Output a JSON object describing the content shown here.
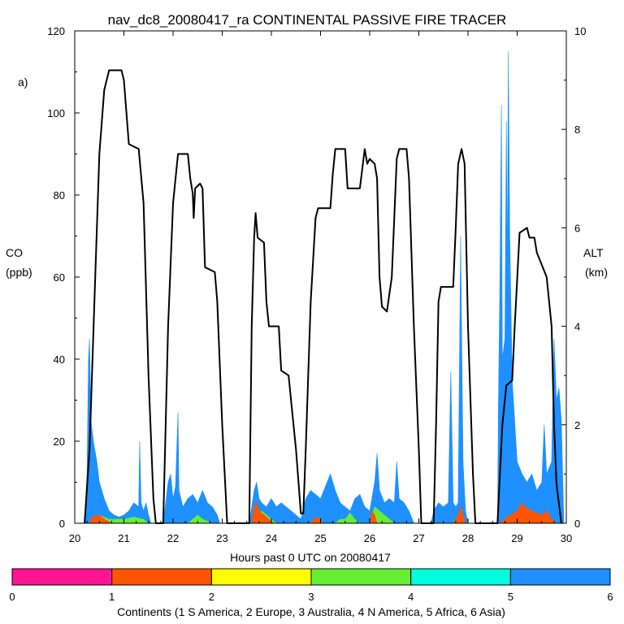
{
  "chart_data": {
    "type": "area",
    "title": "nav_dc8_20080417_ra CONTINENTAL PASSIVE FIRE TRACER",
    "panel_label": "a)",
    "xlabel": "Hours past 0 UTC on 20080417",
    "ylabel_left": [
      "CO",
      "(ppb)"
    ],
    "ylabel_right": [
      "ALT",
      "(km)"
    ],
    "xlim": [
      20,
      30
    ],
    "ylim_left": [
      0,
      120
    ],
    "ylim_right": [
      0,
      10
    ],
    "x_ticks": [
      "20",
      "21",
      "22",
      "23",
      "24",
      "25",
      "26",
      "27",
      "28",
      "29",
      "30"
    ],
    "y_left_ticks": [
      "0",
      "20",
      "40",
      "60",
      "80",
      "100",
      "120"
    ],
    "y_right_ticks": [
      "0",
      "2",
      "4",
      "6",
      "8",
      "10"
    ],
    "colorbar": {
      "ticks": [
        "0",
        "1",
        "2",
        "3",
        "4",
        "5",
        "6"
      ],
      "colors": [
        "#ff1493",
        "#ff5500",
        "#ffff00",
        "#66ee33",
        "#00ffdd",
        "#1e90ff"
      ],
      "label": "Continents (1 S America, 2 Europe, 3 Australia, 4 N America, 5 Africa, 6 Asia)"
    },
    "co_series": [
      {
        "name": "Asia",
        "color": "#1e90ff",
        "points": [
          [
            20.2,
            0
          ],
          [
            20.25,
            12
          ],
          [
            20.28,
            40
          ],
          [
            20.3,
            45
          ],
          [
            20.33,
            25
          ],
          [
            20.38,
            20
          ],
          [
            20.45,
            15
          ],
          [
            20.5,
            10
          ],
          [
            20.6,
            6
          ],
          [
            20.7,
            3
          ],
          [
            20.8,
            2
          ],
          [
            20.9,
            1.5
          ],
          [
            21.0,
            2
          ],
          [
            21.1,
            3
          ],
          [
            21.2,
            5
          ],
          [
            21.3,
            4
          ],
          [
            21.32,
            20
          ],
          [
            21.35,
            5
          ],
          [
            21.4,
            3
          ],
          [
            21.45,
            5
          ],
          [
            21.5,
            2
          ],
          [
            21.55,
            0
          ],
          [
            21.8,
            0
          ],
          [
            21.85,
            5
          ],
          [
            21.9,
            10
          ],
          [
            21.95,
            12
          ],
          [
            22.0,
            6
          ],
          [
            22.05,
            9
          ],
          [
            22.1,
            27
          ],
          [
            22.12,
            8
          ],
          [
            22.2,
            4
          ],
          [
            22.3,
            6
          ],
          [
            22.4,
            7
          ],
          [
            22.5,
            5
          ],
          [
            22.6,
            8
          ],
          [
            22.7,
            5
          ],
          [
            22.8,
            4
          ],
          [
            22.9,
            2
          ],
          [
            22.95,
            0
          ],
          [
            23.55,
            0
          ],
          [
            23.6,
            4
          ],
          [
            23.65,
            8
          ],
          [
            23.7,
            10
          ],
          [
            23.75,
            6
          ],
          [
            23.8,
            5
          ],
          [
            23.9,
            4
          ],
          [
            24.0,
            6
          ],
          [
            24.1,
            4
          ],
          [
            24.2,
            5
          ],
          [
            24.3,
            4
          ],
          [
            24.4,
            3
          ],
          [
            24.5,
            2
          ],
          [
            24.6,
            1
          ],
          [
            24.7,
            6
          ],
          [
            24.8,
            8
          ],
          [
            24.9,
            7
          ],
          [
            25.0,
            6
          ],
          [
            25.1,
            9
          ],
          [
            25.2,
            12
          ],
          [
            25.3,
            8
          ],
          [
            25.4,
            5
          ],
          [
            25.5,
            4
          ],
          [
            25.6,
            3
          ],
          [
            25.7,
            6
          ],
          [
            25.8,
            7
          ],
          [
            25.9,
            4
          ],
          [
            26.0,
            3
          ],
          [
            26.1,
            10
          ],
          [
            26.15,
            17
          ],
          [
            26.2,
            8
          ],
          [
            26.3,
            5
          ],
          [
            26.4,
            6
          ],
          [
            26.5,
            5
          ],
          [
            26.55,
            15
          ],
          [
            26.6,
            6
          ],
          [
            26.7,
            5
          ],
          [
            26.8,
            3
          ],
          [
            26.9,
            0
          ],
          [
            27.25,
            0
          ],
          [
            27.3,
            3
          ],
          [
            27.4,
            5
          ],
          [
            27.5,
            4
          ],
          [
            27.6,
            5
          ],
          [
            27.65,
            37
          ],
          [
            27.7,
            5
          ],
          [
            27.75,
            4
          ],
          [
            27.8,
            5
          ],
          [
            27.85,
            70
          ],
          [
            27.9,
            15
          ],
          [
            27.95,
            3
          ],
          [
            28.0,
            0
          ],
          [
            28.6,
            0
          ],
          [
            28.62,
            30
          ],
          [
            28.65,
            60
          ],
          [
            28.68,
            102
          ],
          [
            28.7,
            40
          ],
          [
            28.75,
            45
          ],
          [
            28.78,
            98
          ],
          [
            28.8,
            60
          ],
          [
            28.82,
            115
          ],
          [
            28.85,
            70
          ],
          [
            28.9,
            35
          ],
          [
            29.0,
            15
          ],
          [
            29.1,
            12
          ],
          [
            29.2,
            10
          ],
          [
            29.3,
            12
          ],
          [
            29.4,
            8
          ],
          [
            29.5,
            10
          ],
          [
            29.55,
            24
          ],
          [
            29.6,
            12
          ],
          [
            29.7,
            15
          ],
          [
            29.75,
            45
          ],
          [
            29.8,
            30
          ],
          [
            29.85,
            33
          ],
          [
            29.9,
            25
          ],
          [
            29.95,
            0
          ]
        ]
      },
      {
        "name": "N America",
        "color": "#66ee33",
        "points": [
          [
            20.3,
            0
          ],
          [
            20.4,
            1
          ],
          [
            20.5,
            2
          ],
          [
            20.7,
            1
          ],
          [
            21.0,
            1
          ],
          [
            21.2,
            1.5
          ],
          [
            21.4,
            1
          ],
          [
            21.5,
            0
          ],
          [
            22.3,
            0
          ],
          [
            22.4,
            1
          ],
          [
            22.5,
            2
          ],
          [
            22.6,
            1
          ],
          [
            22.8,
            0
          ],
          [
            23.7,
            0
          ],
          [
            23.8,
            3
          ],
          [
            23.9,
            2
          ],
          [
            24.0,
            1
          ],
          [
            24.1,
            0
          ],
          [
            25.3,
            0
          ],
          [
            25.4,
            1
          ],
          [
            25.5,
            1
          ],
          [
            25.6,
            2.5
          ],
          [
            25.7,
            1
          ],
          [
            25.8,
            0
          ],
          [
            26.0,
            0
          ],
          [
            26.1,
            4
          ],
          [
            26.2,
            3
          ],
          [
            26.3,
            2
          ],
          [
            26.4,
            1
          ],
          [
            26.5,
            0
          ],
          [
            28.95,
            0
          ],
          [
            29.1,
            4
          ],
          [
            29.2,
            3
          ],
          [
            29.3,
            1
          ],
          [
            29.4,
            0
          ]
        ]
      },
      {
        "name": "S America",
        "color": "#ff5500",
        "points": [
          [
            20.3,
            0
          ],
          [
            20.35,
            1.5
          ],
          [
            20.5,
            2
          ],
          [
            20.6,
            1
          ],
          [
            20.75,
            0
          ],
          [
            23.6,
            0
          ],
          [
            23.65,
            4
          ],
          [
            23.7,
            5
          ],
          [
            23.75,
            3
          ],
          [
            23.85,
            2
          ],
          [
            23.95,
            1
          ],
          [
            24.05,
            0
          ],
          [
            24.8,
            0
          ],
          [
            24.9,
            1.5
          ],
          [
            25.0,
            1
          ],
          [
            25.05,
            0
          ],
          [
            26.0,
            0
          ],
          [
            26.05,
            3
          ],
          [
            26.1,
            2
          ],
          [
            26.15,
            0
          ],
          [
            27.7,
            0
          ],
          [
            27.8,
            2
          ],
          [
            27.85,
            4
          ],
          [
            27.9,
            2
          ],
          [
            27.95,
            0
          ],
          [
            28.65,
            0
          ],
          [
            28.8,
            1.5
          ],
          [
            29.0,
            3
          ],
          [
            29.1,
            5
          ],
          [
            29.15,
            4
          ],
          [
            29.3,
            3
          ],
          [
            29.5,
            2
          ],
          [
            29.6,
            3
          ],
          [
            29.7,
            1
          ],
          [
            29.8,
            0
          ]
        ]
      }
    ],
    "altitude_km": [
      [
        20.2,
        0
      ],
      [
        20.3,
        1.5
      ],
      [
        20.4,
        4.5
      ],
      [
        20.5,
        7.5
      ],
      [
        20.6,
        8.8
      ],
      [
        20.7,
        9.2
      ],
      [
        20.95,
        9.2
      ],
      [
        21.0,
        9.0
      ],
      [
        21.1,
        7.7
      ],
      [
        21.3,
        7.6
      ],
      [
        21.4,
        6.5
      ],
      [
        21.5,
        3.0
      ],
      [
        21.6,
        0.5
      ],
      [
        21.65,
        0
      ],
      [
        21.8,
        0
      ],
      [
        21.9,
        4
      ],
      [
        22.0,
        6.5
      ],
      [
        22.1,
        7.5
      ],
      [
        22.3,
        7.5
      ],
      [
        22.35,
        7.0
      ],
      [
        22.4,
        6.7
      ],
      [
        22.42,
        6.2
      ],
      [
        22.45,
        6.8
      ],
      [
        22.55,
        6.9
      ],
      [
        22.6,
        6.8
      ],
      [
        22.65,
        5.2
      ],
      [
        22.85,
        5.1
      ],
      [
        22.9,
        4.5
      ],
      [
        23.0,
        2
      ],
      [
        23.1,
        0
      ],
      [
        23.55,
        0
      ],
      [
        23.6,
        4
      ],
      [
        23.65,
        5.8
      ],
      [
        23.68,
        6.3
      ],
      [
        23.72,
        5.8
      ],
      [
        23.85,
        5.7
      ],
      [
        23.9,
        4.5
      ],
      [
        23.95,
        4.0
      ],
      [
        24.15,
        4.0
      ],
      [
        24.2,
        3.1
      ],
      [
        24.35,
        3.0
      ],
      [
        24.4,
        2.5
      ],
      [
        24.5,
        1.5
      ],
      [
        24.6,
        0.2
      ],
      [
        24.65,
        0.2
      ],
      [
        24.7,
        1.5
      ],
      [
        24.8,
        4.5
      ],
      [
        24.9,
        6.2
      ],
      [
        24.95,
        6.4
      ],
      [
        25.2,
        6.4
      ],
      [
        25.25,
        7.1
      ],
      [
        25.3,
        7.6
      ],
      [
        25.5,
        7.6
      ],
      [
        25.55,
        6.8
      ],
      [
        25.8,
        6.8
      ],
      [
        25.85,
        7.2
      ],
      [
        25.9,
        7.6
      ],
      [
        25.95,
        7.3
      ],
      [
        26.0,
        7.4
      ],
      [
        26.1,
        7.3
      ],
      [
        26.15,
        7.0
      ],
      [
        26.2,
        5.0
      ],
      [
        26.25,
        4.4
      ],
      [
        26.35,
        4.3
      ],
      [
        26.45,
        5.0
      ],
      [
        26.55,
        7.4
      ],
      [
        26.6,
        7.6
      ],
      [
        26.75,
        7.6
      ],
      [
        26.8,
        7.0
      ],
      [
        26.9,
        4
      ],
      [
        27.0,
        1.5
      ],
      [
        27.05,
        0
      ],
      [
        27.3,
        0
      ],
      [
        27.35,
        2
      ],
      [
        27.4,
        4.5
      ],
      [
        27.45,
        4.8
      ],
      [
        27.7,
        4.8
      ],
      [
        27.75,
        6
      ],
      [
        27.8,
        7.3
      ],
      [
        27.87,
        7.6
      ],
      [
        27.93,
        7.3
      ],
      [
        28.0,
        4
      ],
      [
        28.1,
        1
      ],
      [
        28.15,
        0
      ],
      [
        28.6,
        0
      ],
      [
        28.7,
        2
      ],
      [
        28.78,
        2.8
      ],
      [
        28.9,
        2.9
      ],
      [
        28.95,
        4
      ],
      [
        29.05,
        5.9
      ],
      [
        29.2,
        6.0
      ],
      [
        29.25,
        5.8
      ],
      [
        29.35,
        5.8
      ],
      [
        29.4,
        5.5
      ],
      [
        29.6,
        5.0
      ],
      [
        29.7,
        4
      ],
      [
        29.75,
        2
      ],
      [
        29.8,
        0.8
      ],
      [
        29.85,
        0.4
      ],
      [
        29.9,
        0
      ]
    ]
  }
}
